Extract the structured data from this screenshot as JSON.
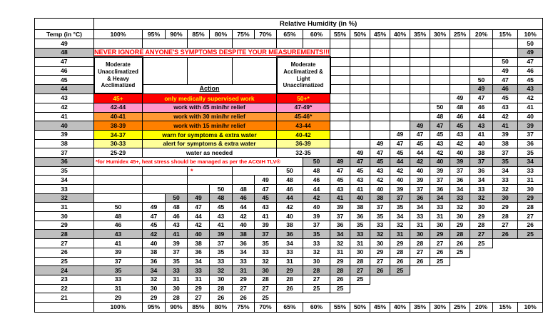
{
  "title": "Relative Humidity (in %)",
  "temp_header": "Temp (in °C)",
  "columns": [
    "100%",
    "95%",
    "90%",
    "85%",
    "80%",
    "75%",
    "70%",
    "65%",
    "60%",
    "55%",
    "50%",
    "45%",
    "40%",
    "35%",
    "30%",
    "25%",
    "20%",
    "15%",
    "10%"
  ],
  "footer_columns": [
    "100%",
    "95%",
    "90%",
    "85%",
    "80%",
    "75%",
    "70%",
    "65%",
    "60%",
    "55%",
    "50%",
    "45%",
    "40%",
    "35%",
    "30%",
    "25%",
    "20%",
    "15%",
    "10%"
  ],
  "banner": "NEVER IGNORE ANYONE'S SYMPTOMS DESPITE YOUR MEASUREMENTS!!!",
  "footnote": "*for Humidex 45+, heat stress should be managed as per the ACGIH TLV®",
  "left_box": "Moderate\nUnacclimatized\n& Heavy\nAcclimatized",
  "right_box": "Moderate\nAcclimatized &\nLight\nUnacclimatized",
  "action_header": "Action",
  "red_mark": "*",
  "colors": {
    "gray": "#BFBFBF",
    "red": "#FF0000",
    "yellow_text": "#FFFF00",
    "pink": "#FF99CC",
    "orange": "#FF9933",
    "dark_orange": "#FF8000",
    "yellow": "#FFFF00",
    "light_yellow": "#FFFF99",
    "red_text": "#FF0000",
    "white": "#FFFFFF",
    "black": "#000000"
  },
  "action_rows": [
    {
      "temp": "43",
      "range_left": "45+",
      "text": "only medically supervised work",
      "range_right": "50+*",
      "bg": "#FF0000",
      "fg": "#FFFF00"
    },
    {
      "temp": "42",
      "range_left": "42-44",
      "text": "work with 45 min/hr relief",
      "range_right": "47-49*",
      "bg": "#FF99CC",
      "fg": "#000000"
    },
    {
      "temp": "41",
      "range_left": "40-41",
      "text": "work with 30 min/hr relief",
      "range_right": "45-46*",
      "bg": "#FF9933",
      "fg": "#000000"
    },
    {
      "temp": "40",
      "range_left": "38-39",
      "text": "work with 15 min/hr relief",
      "range_right": "43-44",
      "bg": "#FF8000",
      "fg": "#000000"
    },
    {
      "temp": "39",
      "range_left": "34-37",
      "text": "warn for symptoms & extra water",
      "range_right": "40-42",
      "bg": "#FFFF00",
      "fg": "#000000"
    },
    {
      "temp": "38",
      "range_left": "30-33",
      "text": "alert for symptoms & extra water",
      "range_right": "36-39",
      "bg": "#FFFF99",
      "fg": "#000000"
    },
    {
      "temp": "37",
      "range_left": "25-29",
      "text": "water as needed",
      "range_right": "32-35",
      "bg": "#FFFFFF",
      "fg": "#000000"
    }
  ],
  "gray_rows": [
    48,
    44,
    40,
    36,
    32,
    28,
    24
  ],
  "rows": [
    {
      "temp": "49",
      "values": [
        "",
        "",
        "",
        "",
        "",
        "",
        "",
        "",
        "",
        "",
        "",
        "",
        "",
        "",
        "",
        "",
        "",
        "",
        "50"
      ]
    },
    {
      "temp": "48",
      "values": [
        "",
        "",
        "",
        "",
        "",
        "",
        "",
        "",
        "",
        "",
        "",
        "",
        "",
        "",
        "",
        "",
        "",
        "",
        "49"
      ]
    },
    {
      "temp": "47",
      "values": [
        "",
        "",
        "",
        "",
        "",
        "",
        "",
        "",
        "",
        "",
        "",
        "",
        "",
        "",
        "",
        "",
        "",
        "50",
        "47"
      ]
    },
    {
      "temp": "46",
      "values": [
        "",
        "",
        "",
        "",
        "",
        "",
        "",
        "",
        "",
        "",
        "",
        "",
        "",
        "",
        "",
        "",
        "",
        "49",
        "46"
      ]
    },
    {
      "temp": "45",
      "values": [
        "",
        "",
        "",
        "",
        "",
        "",
        "",
        "",
        "",
        "",
        "",
        "",
        "",
        "",
        "",
        "",
        "50",
        "47",
        "45"
      ]
    },
    {
      "temp": "44",
      "values": [
        "",
        "",
        "",
        "",
        "",
        "",
        "",
        "",
        "",
        "",
        "",
        "",
        "",
        "",
        "",
        "",
        "49",
        "46",
        "43"
      ]
    },
    {
      "temp": "43",
      "values": [
        "",
        "",
        "",
        "",
        "",
        "",
        "",
        "",
        "",
        "",
        "",
        "",
        "",
        "",
        "",
        "49",
        "47",
        "45",
        "42"
      ]
    },
    {
      "temp": "42",
      "values": [
        "",
        "",
        "",
        "",
        "",
        "",
        "",
        "",
        "",
        "",
        "",
        "",
        "",
        "",
        "50",
        "48",
        "46",
        "43",
        "41"
      ]
    },
    {
      "temp": "41",
      "values": [
        "",
        "",
        "",
        "",
        "",
        "",
        "",
        "",
        "",
        "",
        "",
        "",
        "",
        "",
        "48",
        "46",
        "44",
        "42",
        "40"
      ]
    },
    {
      "temp": "40",
      "values": [
        "",
        "",
        "",
        "",
        "",
        "",
        "",
        "",
        "",
        "",
        "",
        "",
        "",
        "49",
        "47",
        "45",
        "43",
        "41",
        "39"
      ]
    },
    {
      "temp": "39",
      "values": [
        "",
        "",
        "",
        "",
        "",
        "",
        "",
        "",
        "",
        "",
        "",
        "",
        "49",
        "47",
        "45",
        "43",
        "41",
        "39",
        "37"
      ]
    },
    {
      "temp": "38",
      "values": [
        "",
        "",
        "",
        "",
        "",
        "",
        "",
        "",
        "",
        "",
        "",
        "49",
        "47",
        "45",
        "43",
        "42",
        "40",
        "38",
        "36"
      ]
    },
    {
      "temp": "37",
      "values": [
        "",
        "",
        "",
        "",
        "",
        "",
        "",
        "",
        "",
        "",
        "49",
        "47",
        "45",
        "44",
        "42",
        "40",
        "38",
        "37",
        "35"
      ]
    },
    {
      "temp": "36",
      "values": [
        "",
        "",
        "",
        "",
        "",
        "",
        "",
        "",
        "50",
        "49",
        "47",
        "45",
        "44",
        "42",
        "40",
        "39",
        "37",
        "35",
        "34"
      ]
    },
    {
      "temp": "35",
      "values": [
        "",
        "",
        "",
        "",
        "",
        "",
        "",
        "50",
        "48",
        "47",
        "45",
        "43",
        "42",
        "40",
        "39",
        "37",
        "36",
        "34",
        "33"
      ]
    },
    {
      "temp": "34",
      "values": [
        "",
        "",
        "",
        "",
        "",
        "",
        "49",
        "48",
        "46",
        "45",
        "43",
        "42",
        "40",
        "39",
        "37",
        "36",
        "34",
        "33",
        "31"
      ]
    },
    {
      "temp": "33",
      "values": [
        "",
        "",
        "",
        "",
        "50",
        "48",
        "47",
        "46",
        "44",
        "43",
        "41",
        "40",
        "39",
        "37",
        "36",
        "34",
        "33",
        "32",
        "30"
      ]
    },
    {
      "temp": "32",
      "values": [
        "",
        "",
        "50",
        "49",
        "48",
        "46",
        "45",
        "44",
        "42",
        "41",
        "40",
        "38",
        "37",
        "36",
        "34",
        "33",
        "32",
        "30",
        "29"
      ]
    },
    {
      "temp": "31",
      "values": [
        "50",
        "49",
        "48",
        "47",
        "45",
        "44",
        "43",
        "42",
        "40",
        "39",
        "38",
        "37",
        "35",
        "34",
        "33",
        "32",
        "30",
        "29",
        "28"
      ]
    },
    {
      "temp": "30",
      "values": [
        "48",
        "47",
        "46",
        "44",
        "43",
        "42",
        "41",
        "40",
        "39",
        "37",
        "36",
        "35",
        "34",
        "33",
        "31",
        "30",
        "29",
        "28",
        "27"
      ]
    },
    {
      "temp": "29",
      "values": [
        "46",
        "45",
        "43",
        "42",
        "41",
        "40",
        "39",
        "38",
        "37",
        "36",
        "35",
        "33",
        "32",
        "31",
        "30",
        "29",
        "28",
        "27",
        "26"
      ]
    },
    {
      "temp": "28",
      "values": [
        "43",
        "42",
        "41",
        "40",
        "39",
        "38",
        "37",
        "36",
        "35",
        "34",
        "33",
        "32",
        "31",
        "30",
        "29",
        "28",
        "27",
        "26",
        "25"
      ]
    },
    {
      "temp": "27",
      "values": [
        "41",
        "40",
        "39",
        "38",
        "37",
        "36",
        "35",
        "34",
        "33",
        "32",
        "31",
        "30",
        "29",
        "28",
        "27",
        "26",
        "25",
        "",
        ""
      ]
    },
    {
      "temp": "26",
      "values": [
        "39",
        "38",
        "37",
        "36",
        "35",
        "34",
        "33",
        "33",
        "32",
        "31",
        "30",
        "29",
        "28",
        "27",
        "26",
        "25",
        "",
        "",
        ""
      ]
    },
    {
      "temp": "25",
      "values": [
        "37",
        "36",
        "35",
        "34",
        "33",
        "33",
        "32",
        "31",
        "30",
        "29",
        "28",
        "27",
        "26",
        "26",
        "25",
        "",
        "",
        "",
        ""
      ]
    },
    {
      "temp": "24",
      "values": [
        "35",
        "34",
        "33",
        "33",
        "32",
        "31",
        "30",
        "29",
        "28",
        "28",
        "27",
        "26",
        "25",
        "",
        "",
        "",
        "",
        "",
        ""
      ]
    },
    {
      "temp": "23",
      "values": [
        "33",
        "32",
        "31",
        "31",
        "30",
        "29",
        "28",
        "28",
        "27",
        "26",
        "25",
        "",
        "",
        "",
        "",
        "",
        "",
        "",
        ""
      ]
    },
    {
      "temp": "22",
      "values": [
        "31",
        "30",
        "30",
        "29",
        "28",
        "27",
        "27",
        "26",
        "25",
        "25",
        "",
        "",
        "",
        "",
        "",
        "",
        "",
        "",
        ""
      ]
    },
    {
      "temp": "21",
      "values": [
        "29",
        "29",
        "28",
        "27",
        "26",
        "26",
        "25",
        "",
        "",
        "",
        "",
        "",
        "",
        "",
        "",
        "",
        "",
        "",
        ""
      ]
    }
  ]
}
